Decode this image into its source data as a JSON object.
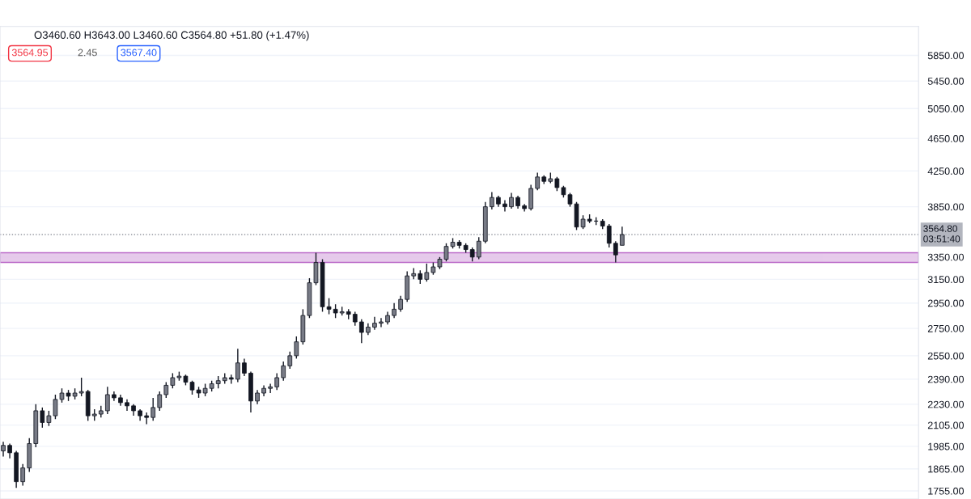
{
  "chart_data": {
    "type": "candlestick",
    "log": true,
    "grid": "y",
    "ylim": [
      1716,
      6338
    ],
    "yticks": [
      {
        "value": 1755,
        "label": "1755.00"
      },
      {
        "value": 1865,
        "label": "1865.00"
      },
      {
        "value": 1985,
        "label": "1985.00"
      },
      {
        "value": 2105,
        "label": "2105.00"
      },
      {
        "value": 2230,
        "label": "2230.00"
      },
      {
        "value": 2390,
        "label": "2390.00"
      },
      {
        "value": 2550,
        "label": "2550.00"
      },
      {
        "value": 2750,
        "label": "2750.00"
      },
      {
        "value": 2950,
        "label": "2950.00"
      },
      {
        "value": 3150,
        "label": "3150.00"
      },
      {
        "value": 3350,
        "label": "3350.00"
      },
      {
        "value": 3850,
        "label": "3850.00"
      },
      {
        "value": 4250,
        "label": "4250.00"
      },
      {
        "value": 4650,
        "label": "4650.00"
      },
      {
        "value": 5050,
        "label": "5050.00"
      },
      {
        "value": 5450,
        "label": "5450.00"
      },
      {
        "value": 5850,
        "label": "5850.00"
      }
    ],
    "categories": [
      null,
      null,
      null,
      null,
      null,
      null,
      null,
      null,
      null,
      null,
      null,
      null,
      null,
      null,
      null,
      null,
      null,
      null,
      null,
      null,
      null,
      null,
      null,
      null,
      null,
      null,
      null,
      null,
      null,
      null,
      null,
      null,
      null,
      null,
      null,
      null,
      null,
      null,
      null,
      null,
      null,
      null,
      null,
      null,
      null,
      null,
      null,
      null,
      null,
      null,
      null,
      null,
      null,
      null,
      null,
      null,
      null,
      null,
      null,
      null,
      null,
      null,
      null,
      null,
      null,
      null,
      null,
      null,
      null,
      null,
      null,
      null,
      null,
      null,
      null,
      null,
      null,
      null,
      null,
      null,
      null,
      null,
      null,
      null,
      null,
      null,
      null,
      null,
      null,
      null,
      null,
      null,
      null,
      null,
      null,
      null,
      null,
      null,
      null,
      null,
      null,
      null,
      null,
      null,
      null,
      null,
      null,
      null,
      null,
      null,
      null,
      null,
      null,
      null,
      null,
      null,
      null,
      null,
      null,
      null,
      null,
      null,
      null,
      null,
      null,
      null,
      null,
      null,
      null,
      null,
      null,
      null,
      null,
      null,
      null,
      null,
      null,
      null,
      null,
      null,
      null
    ],
    "ohlc": [
      [
        1960,
        2010,
        1930,
        1990
      ],
      [
        1990,
        2000,
        1920,
        1950
      ],
      [
        1950,
        1960,
        1770,
        1800
      ],
      [
        1800,
        1890,
        1780,
        1870
      ],
      [
        1870,
        2030,
        1850,
        2000
      ],
      [
        2000,
        2230,
        1980,
        2190
      ],
      [
        2190,
        2210,
        2090,
        2120
      ],
      [
        2120,
        2190,
        2100,
        2160
      ],
      [
        2160,
        2290,
        2140,
        2260
      ],
      [
        2260,
        2330,
        2240,
        2300
      ],
      [
        2300,
        2320,
        2250,
        2280
      ],
      [
        2280,
        2330,
        2260,
        2300
      ],
      [
        2300,
        2400,
        2280,
        2310
      ],
      [
        2310,
        2320,
        2130,
        2160
      ],
      [
        2160,
        2200,
        2130,
        2170
      ],
      [
        2170,
        2220,
        2150,
        2190
      ],
      [
        2190,
        2340,
        2170,
        2290
      ],
      [
        2290,
        2310,
        2250,
        2270
      ],
      [
        2270,
        2290,
        2220,
        2240
      ],
      [
        2240,
        2260,
        2190,
        2220
      ],
      [
        2220,
        2230,
        2160,
        2190
      ],
      [
        2190,
        2200,
        2130,
        2160
      ],
      [
        2160,
        2180,
        2110,
        2150
      ],
      [
        2150,
        2270,
        2130,
        2210
      ],
      [
        2210,
        2310,
        2190,
        2290
      ],
      [
        2290,
        2370,
        2270,
        2350
      ],
      [
        2350,
        2430,
        2330,
        2400
      ],
      [
        2400,
        2440,
        2380,
        2410
      ],
      [
        2410,
        2420,
        2350,
        2370
      ],
      [
        2370,
        2380,
        2290,
        2320
      ],
      [
        2320,
        2340,
        2270,
        2300
      ],
      [
        2300,
        2360,
        2280,
        2330
      ],
      [
        2330,
        2380,
        2310,
        2360
      ],
      [
        2360,
        2410,
        2330,
        2380
      ],
      [
        2380,
        2430,
        2360,
        2400
      ],
      [
        2400,
        2420,
        2360,
        2390
      ],
      [
        2390,
        2600,
        2370,
        2500
      ],
      [
        2500,
        2530,
        2410,
        2430
      ],
      [
        2430,
        2440,
        2180,
        2250
      ],
      [
        2250,
        2320,
        2230,
        2300
      ],
      [
        2300,
        2350,
        2280,
        2330
      ],
      [
        2330,
        2360,
        2300,
        2340
      ],
      [
        2340,
        2430,
        2320,
        2400
      ],
      [
        2400,
        2510,
        2380,
        2480
      ],
      [
        2480,
        2580,
        2460,
        2550
      ],
      [
        2550,
        2690,
        2530,
        2650
      ],
      [
        2650,
        2900,
        2630,
        2850
      ],
      [
        2850,
        3160,
        2830,
        3120
      ],
      [
        3120,
        3390,
        3100,
        3300
      ],
      [
        3300,
        3330,
        2880,
        2920
      ],
      [
        2920,
        2990,
        2860,
        2900
      ],
      [
        2900,
        2940,
        2830,
        2870
      ],
      [
        2870,
        2920,
        2850,
        2880
      ],
      [
        2880,
        2900,
        2820,
        2860
      ],
      [
        2860,
        2880,
        2770,
        2800
      ],
      [
        2800,
        2820,
        2640,
        2720
      ],
      [
        2720,
        2790,
        2700,
        2760
      ],
      [
        2760,
        2840,
        2740,
        2790
      ],
      [
        2790,
        2830,
        2760,
        2800
      ],
      [
        2800,
        2880,
        2780,
        2850
      ],
      [
        2850,
        2950,
        2830,
        2900
      ],
      [
        2900,
        3010,
        2880,
        2980
      ],
      [
        2980,
        3220,
        2960,
        3180
      ],
      [
        3180,
        3250,
        3150,
        3200
      ],
      [
        3200,
        3230,
        3110,
        3150
      ],
      [
        3150,
        3290,
        3130,
        3210
      ],
      [
        3210,
        3300,
        3190,
        3260
      ],
      [
        3260,
        3350,
        3240,
        3330
      ],
      [
        3330,
        3480,
        3310,
        3450
      ],
      [
        3450,
        3530,
        3430,
        3490
      ],
      [
        3490,
        3510,
        3430,
        3460
      ],
      [
        3460,
        3480,
        3390,
        3420
      ],
      [
        3420,
        3440,
        3310,
        3350
      ],
      [
        3350,
        3540,
        3330,
        3500
      ],
      [
        3500,
        3900,
        3480,
        3850
      ],
      [
        3850,
        4010,
        3820,
        3950
      ],
      [
        3950,
        3970,
        3850,
        3880
      ],
      [
        3880,
        3920,
        3800,
        3850
      ],
      [
        3850,
        4000,
        3830,
        3950
      ],
      [
        3950,
        3970,
        3830,
        3860
      ],
      [
        3860,
        3880,
        3800,
        3830
      ],
      [
        3830,
        4090,
        3810,
        4050
      ],
      [
        4050,
        4230,
        4030,
        4180
      ],
      [
        4180,
        4200,
        4100,
        4130
      ],
      [
        4130,
        4230,
        4110,
        4160
      ],
      [
        4160,
        4180,
        4020,
        4060
      ],
      [
        4060,
        4080,
        3950,
        3980
      ],
      [
        3980,
        4000,
        3850,
        3880
      ],
      [
        3880,
        3900,
        3610,
        3640
      ],
      [
        3640,
        3760,
        3620,
        3720
      ],
      [
        3720,
        3770,
        3680,
        3700
      ],
      [
        3700,
        3740,
        3660,
        3700
      ],
      [
        3700,
        3720,
        3620,
        3650
      ],
      [
        3650,
        3670,
        3440,
        3480
      ],
      [
        3480,
        3500,
        3300,
        3370
      ],
      [
        3460.6,
        3643,
        3460.6,
        3564.8
      ],
      null,
      null,
      null,
      null,
      null,
      null,
      null,
      null,
      null,
      null,
      null,
      null,
      null,
      null,
      null,
      null,
      null,
      null,
      null,
      null,
      null,
      null,
      null,
      null,
      null,
      null,
      null,
      null,
      null,
      null,
      null,
      null,
      null,
      null,
      null,
      null,
      null,
      null,
      null,
      null,
      null,
      null,
      null,
      null,
      null
    ],
    "ref_lines": [
      {
        "axis": "y",
        "value": 3564.8,
        "label": "3564.80\n03:51:40",
        "color": "#9598a1",
        "line_style": "dotted"
      }
    ],
    "bands": [
      {
        "axis": "y",
        "from": 3300,
        "to": 3390,
        "label": null,
        "color": "#e1bee7"
      }
    ],
    "annotations": [
      "O3460.60 H3643.00 L3460.60 C3564.80 +51.80 (+1.47%)",
      "3564.95",
      "2.45",
      "3567.40"
    ]
  }
}
